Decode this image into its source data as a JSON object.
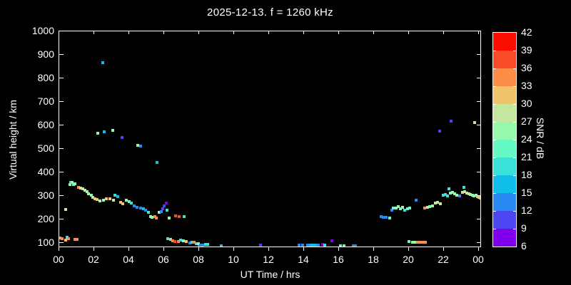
{
  "title": "2025-12-13. f = 1260 kHz",
  "colors": {
    "background": "#000000",
    "foreground": "#FFFFFF"
  },
  "axes": {
    "x_label": "UT Time / hrs",
    "y_label": "Virtual height / km",
    "x_tick_labels": [
      "00",
      "02",
      "04",
      "06",
      "08",
      "10",
      "12",
      "14",
      "16",
      "18",
      "20",
      "22",
      "00"
    ],
    "x_tick_hours": [
      0,
      2,
      4,
      6,
      8,
      10,
      12,
      14,
      16,
      18,
      20,
      22,
      24
    ],
    "y_tick_labels": [
      "100",
      "200",
      "300",
      "400",
      "500",
      "600",
      "700",
      "800",
      "900",
      "1000"
    ],
    "y_tick_km": [
      100,
      200,
      300,
      400,
      500,
      600,
      700,
      800,
      900,
      1000
    ]
  },
  "colorbar": {
    "label": "SNR / dB",
    "tick_labels": [
      "42",
      "39",
      "36",
      "33",
      "30",
      "27",
      "24",
      "21",
      "18",
      "15",
      "12",
      "9",
      "6"
    ],
    "levels_low_to_high": [
      6,
      9,
      12,
      15,
      18,
      21,
      24,
      27,
      30,
      33,
      36,
      39,
      42
    ],
    "palette_low_to_high": [
      "#8000EB",
      "#4C46F2",
      "#2989F2",
      "#0FBFE8",
      "#38E2D8",
      "#66F9C3",
      "#97F7AB",
      "#C4E69E",
      "#F1C36A",
      "#FC8D49",
      "#FA4B28",
      "#FB0D00"
    ]
  },
  "chart_data": {
    "type": "scatter",
    "title": "2025-12-13. f = 1260 kHz",
    "xlabel": "UT Time / hrs",
    "ylabel": "Virtual height / km",
    "zlabel": "SNR / dB",
    "xlim": [
      0,
      24.2
    ],
    "ylim": [
      79,
      1000
    ],
    "zlim": [
      6,
      42
    ],
    "grid": false,
    "point_format": "[ut_hours, virtual_height_km, snr_db]",
    "points": [
      [
        0.05,
        120,
        34
      ],
      [
        0.15,
        118,
        34
      ],
      [
        0.35,
        112,
        31
      ],
      [
        0.45,
        124,
        19
      ],
      [
        0.52,
        118,
        34
      ],
      [
        0.9,
        116,
        34
      ],
      [
        1.02,
        115,
        34
      ],
      [
        0.37,
        243,
        28
      ],
      [
        0.6,
        350,
        25
      ],
      [
        0.65,
        357,
        19
      ],
      [
        0.72,
        359,
        25
      ],
      [
        0.8,
        347,
        22
      ],
      [
        0.88,
        351,
        25
      ],
      [
        1.1,
        337,
        34
      ],
      [
        1.22,
        334,
        28
      ],
      [
        1.35,
        330,
        28
      ],
      [
        1.47,
        325,
        28
      ],
      [
        1.58,
        319,
        25
      ],
      [
        1.68,
        310,
        25
      ],
      [
        1.84,
        304,
        25
      ],
      [
        1.93,
        295,
        28
      ],
      [
        2.05,
        289,
        31
      ],
      [
        2.15,
        286,
        31
      ],
      [
        2.33,
        280,
        25
      ],
      [
        2.53,
        283,
        25
      ],
      [
        2.7,
        287,
        31
      ],
      [
        2.9,
        288,
        31
      ],
      [
        3.1,
        283,
        28
      ],
      [
        3.2,
        303,
        19
      ],
      [
        3.35,
        297,
        16
      ],
      [
        3.5,
        272,
        31
      ],
      [
        3.62,
        266,
        31
      ],
      [
        3.85,
        283,
        25
      ],
      [
        4.0,
        276,
        22
      ],
      [
        4.12,
        271,
        19
      ],
      [
        4.3,
        259,
        13
      ],
      [
        4.45,
        253,
        13
      ],
      [
        4.65,
        248,
        13
      ],
      [
        4.8,
        244,
        16
      ],
      [
        4.95,
        240,
        13
      ],
      [
        5.1,
        229,
        19
      ],
      [
        5.22,
        212,
        25
      ],
      [
        5.32,
        208,
        25
      ],
      [
        5.45,
        213,
        34
      ],
      [
        5.55,
        206,
        34
      ],
      [
        5.72,
        229,
        25
      ],
      [
        5.82,
        234,
        13
      ],
      [
        5.92,
        246,
        10
      ],
      [
        6.02,
        258,
        10
      ],
      [
        6.12,
        270,
        7
      ],
      [
        6.18,
        240,
        19
      ],
      [
        6.28,
        207,
        25
      ],
      [
        6.65,
        214,
        37
      ],
      [
        6.85,
        211,
        37
      ],
      [
        7.15,
        211,
        19
      ],
      [
        6.2,
        117,
        19
      ],
      [
        6.35,
        114,
        31
      ],
      [
        6.5,
        110,
        34
      ],
      [
        6.62,
        107,
        37
      ],
      [
        6.8,
        107,
        34
      ],
      [
        6.95,
        113,
        19
      ],
      [
        7.1,
        110,
        25
      ],
      [
        7.25,
        107,
        31
      ],
      [
        7.45,
        101,
        13
      ],
      [
        7.58,
        104,
        19
      ],
      [
        7.72,
        104,
        34
      ],
      [
        7.85,
        98,
        19
      ],
      [
        7.95,
        98,
        25
      ],
      [
        8.0,
        84,
        13
      ],
      [
        8.08,
        92,
        13
      ],
      [
        8.15,
        82,
        10
      ],
      [
        8.22,
        91,
        13
      ],
      [
        8.38,
        95,
        19
      ],
      [
        8.5,
        94,
        19
      ],
      [
        9.25,
        87,
        16
      ],
      [
        11.5,
        90,
        10
      ],
      [
        13.7,
        90,
        13
      ],
      [
        13.9,
        90,
        13
      ],
      [
        14.2,
        90,
        13
      ],
      [
        14.35,
        90,
        16
      ],
      [
        14.5,
        90,
        16
      ],
      [
        14.65,
        90,
        16
      ],
      [
        14.8,
        90,
        13
      ],
      [
        15.05,
        93,
        7
      ],
      [
        15.18,
        91,
        19
      ],
      [
        15.6,
        108,
        7
      ],
      [
        16.1,
        88,
        22
      ],
      [
        16.27,
        88,
        22
      ],
      [
        16.8,
        88,
        13
      ],
      [
        16.95,
        88,
        13
      ],
      [
        18.4,
        212,
        13
      ],
      [
        18.55,
        210,
        13
      ],
      [
        18.7,
        208,
        13
      ],
      [
        18.9,
        207,
        22
      ],
      [
        19.0,
        238,
        13
      ],
      [
        19.12,
        250,
        22
      ],
      [
        19.25,
        247,
        25
      ],
      [
        19.38,
        256,
        25
      ],
      [
        19.5,
        244,
        22
      ],
      [
        19.62,
        251,
        25
      ],
      [
        19.75,
        238,
        19
      ],
      [
        19.9,
        245,
        22
      ],
      [
        20.05,
        250,
        22
      ],
      [
        20.4,
        282,
        13
      ],
      [
        20.0,
        105,
        22
      ],
      [
        20.2,
        103,
        25
      ],
      [
        20.35,
        103,
        25
      ],
      [
        20.5,
        103,
        34
      ],
      [
        20.65,
        103,
        34
      ],
      [
        20.8,
        103,
        34
      ],
      [
        20.95,
        102,
        34
      ],
      [
        20.9,
        250,
        34
      ],
      [
        21.05,
        253,
        25
      ],
      [
        21.2,
        256,
        25
      ],
      [
        21.35,
        259,
        25
      ],
      [
        21.5,
        271,
        28
      ],
      [
        21.65,
        274,
        28
      ],
      [
        21.78,
        268,
        28
      ],
      [
        21.95,
        302,
        19
      ],
      [
        22.1,
        305,
        19
      ],
      [
        22.2,
        299,
        19
      ],
      [
        22.28,
        330,
        19
      ],
      [
        22.38,
        311,
        25
      ],
      [
        22.5,
        314,
        25
      ],
      [
        22.62,
        308,
        25
      ],
      [
        22.75,
        302,
        25
      ],
      [
        22.9,
        299,
        13
      ],
      [
        23.05,
        314,
        28
      ],
      [
        23.15,
        336,
        19
      ],
      [
        23.2,
        317,
        28
      ],
      [
        23.32,
        311,
        28
      ],
      [
        23.42,
        308,
        28
      ],
      [
        23.52,
        305,
        25
      ],
      [
        23.62,
        302,
        25
      ],
      [
        23.72,
        299,
        25
      ],
      [
        23.82,
        302,
        25
      ],
      [
        23.92,
        297,
        31
      ],
      [
        24.0,
        295,
        31
      ],
      [
        24.1,
        291,
        31
      ],
      [
        2.2,
        568,
        25
      ],
      [
        2.5,
        866,
        16
      ],
      [
        2.57,
        574,
        16
      ],
      [
        3.06,
        580,
        25
      ],
      [
        3.59,
        547,
        10
      ],
      [
        4.49,
        516,
        25
      ],
      [
        4.65,
        513,
        13
      ],
      [
        5.59,
        443,
        16
      ],
      [
        21.75,
        577,
        10
      ],
      [
        22.4,
        617,
        10
      ],
      [
        23.75,
        613,
        28
      ]
    ]
  }
}
